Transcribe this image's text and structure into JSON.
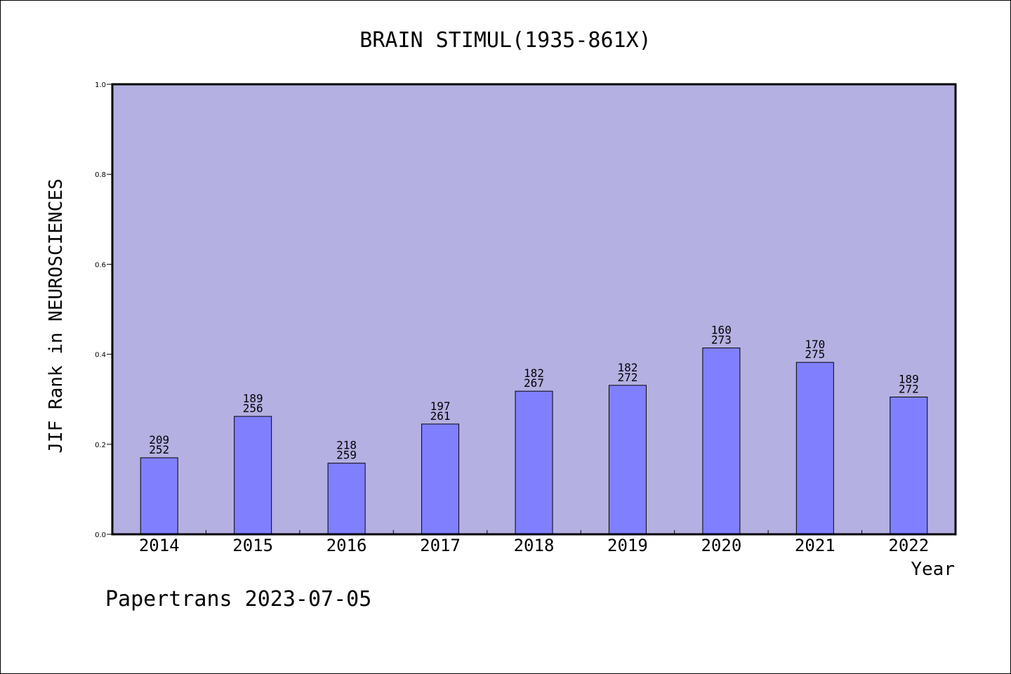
{
  "chart_data": {
    "type": "bar",
    "title": "BRAIN STIMUL(1935-861X)",
    "xlabel": "Year",
    "ylabel": "JIF Rank in NEUROSCIENCES",
    "ylim": [
      0,
      1.0
    ],
    "yticks": [
      "0.0",
      "0.2",
      "0.4",
      "0.6",
      "0.8",
      "1.0"
    ],
    "categories": [
      "2014",
      "2015",
      "2016",
      "2017",
      "2018",
      "2019",
      "2020",
      "2021",
      "2022"
    ],
    "values": [
      0.17,
      0.262,
      0.158,
      0.245,
      0.318,
      0.331,
      0.414,
      0.382,
      0.305
    ],
    "rank": [
      "209",
      "189",
      "218",
      "197",
      "182",
      "182",
      "160",
      "170",
      "189"
    ],
    "total": [
      "252",
      "256",
      "259",
      "261",
      "267",
      "272",
      "273",
      "275",
      "272"
    ],
    "colors": {
      "plot_background": "#b5b0e2",
      "bar_fill": "#8080ff",
      "axis": "#000000"
    }
  },
  "footer": "Papertrans 2023-07-05"
}
